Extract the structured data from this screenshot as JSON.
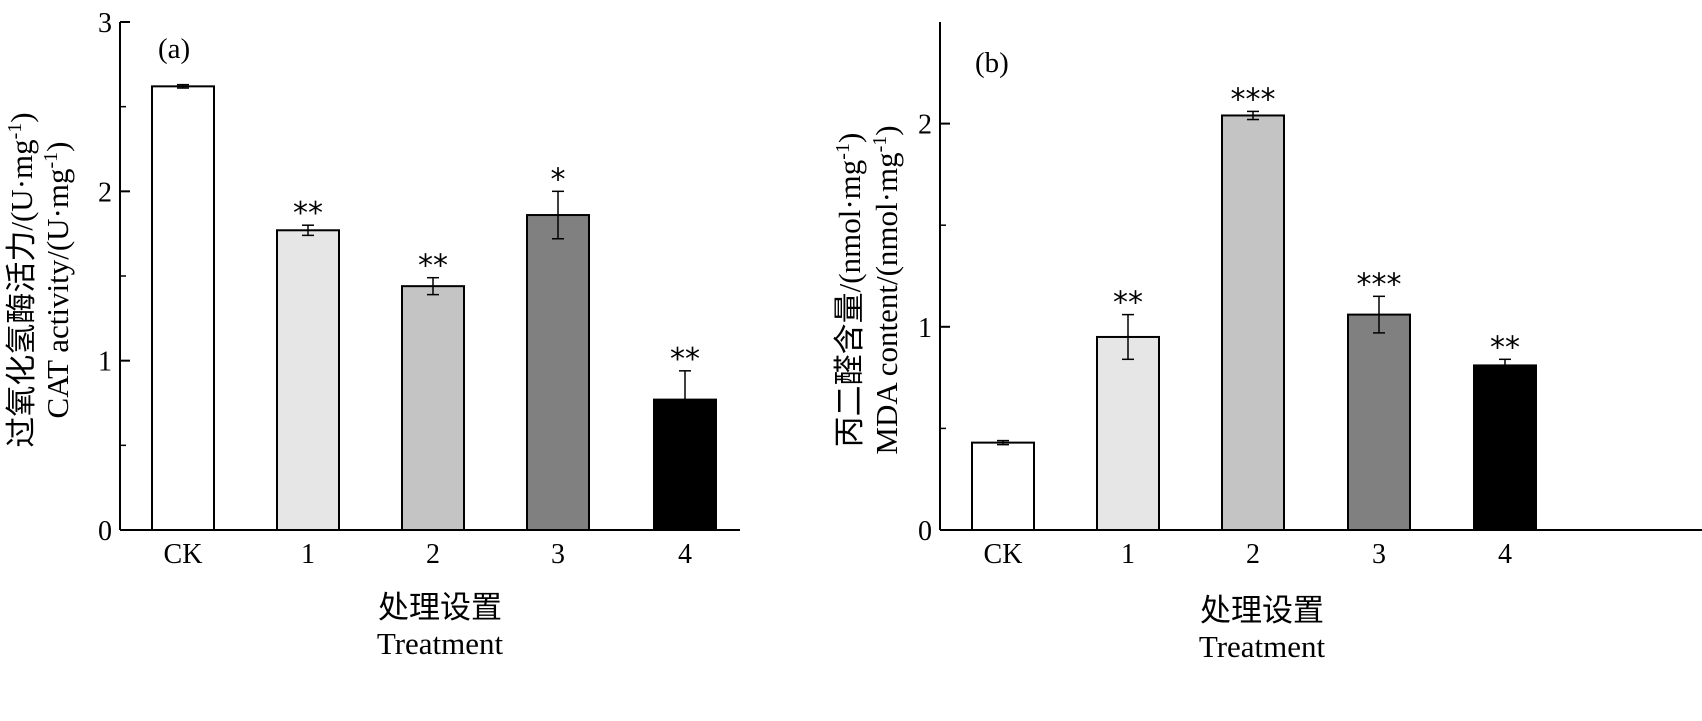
{
  "chart_data": [
    {
      "type": "bar",
      "panel_label": "(a)",
      "categories": [
        "CK",
        "1",
        "2",
        "3",
        "4"
      ],
      "values": [
        2.62,
        1.77,
        1.44,
        1.86,
        0.77
      ],
      "errors": [
        0.01,
        0.03,
        0.05,
        0.14,
        0.17
      ],
      "significance": [
        "",
        "**",
        "**",
        "*",
        "**"
      ],
      "bar_colors": [
        "#ffffff",
        "#e6e6e6",
        "#c4c4c4",
        "#808080",
        "#000000"
      ],
      "ylim": [
        0,
        3
      ],
      "yticks": [
        "0",
        "1",
        "2",
        "3"
      ],
      "ylabel_cn": "过氧化氢酶活力/(U·mg",
      "ylabel_en": "CAT activity/(U·mg",
      "ylabel_sup": "-1",
      "ylabel_close": ")",
      "xlabel_cn": "处理设置",
      "xlabel_en": "Treatment",
      "grid": false,
      "legend": "none"
    },
    {
      "type": "bar",
      "panel_label": "(b)",
      "categories": [
        "CK",
        "1",
        "2",
        "3",
        "4"
      ],
      "values": [
        0.43,
        0.95,
        2.04,
        1.06,
        0.81
      ],
      "errors": [
        0.01,
        0.11,
        0.02,
        0.09,
        0.03
      ],
      "significance": [
        "",
        "**",
        "***",
        "***",
        "**"
      ],
      "bar_colors": [
        "#ffffff",
        "#e6e6e6",
        "#c4c4c4",
        "#808080",
        "#000000"
      ],
      "ylim": [
        0,
        2.5
      ],
      "yticks": [
        "0",
        "1",
        "2"
      ],
      "ylabel_cn": "丙二醛含量/(nmol·mg",
      "ylabel_en": "MDA content/(nmol·mg",
      "ylabel_sup": "-1",
      "ylabel_close": ")",
      "xlabel_cn": "处理设置",
      "xlabel_en": "Treatment",
      "grid": false,
      "legend": "none"
    }
  ]
}
